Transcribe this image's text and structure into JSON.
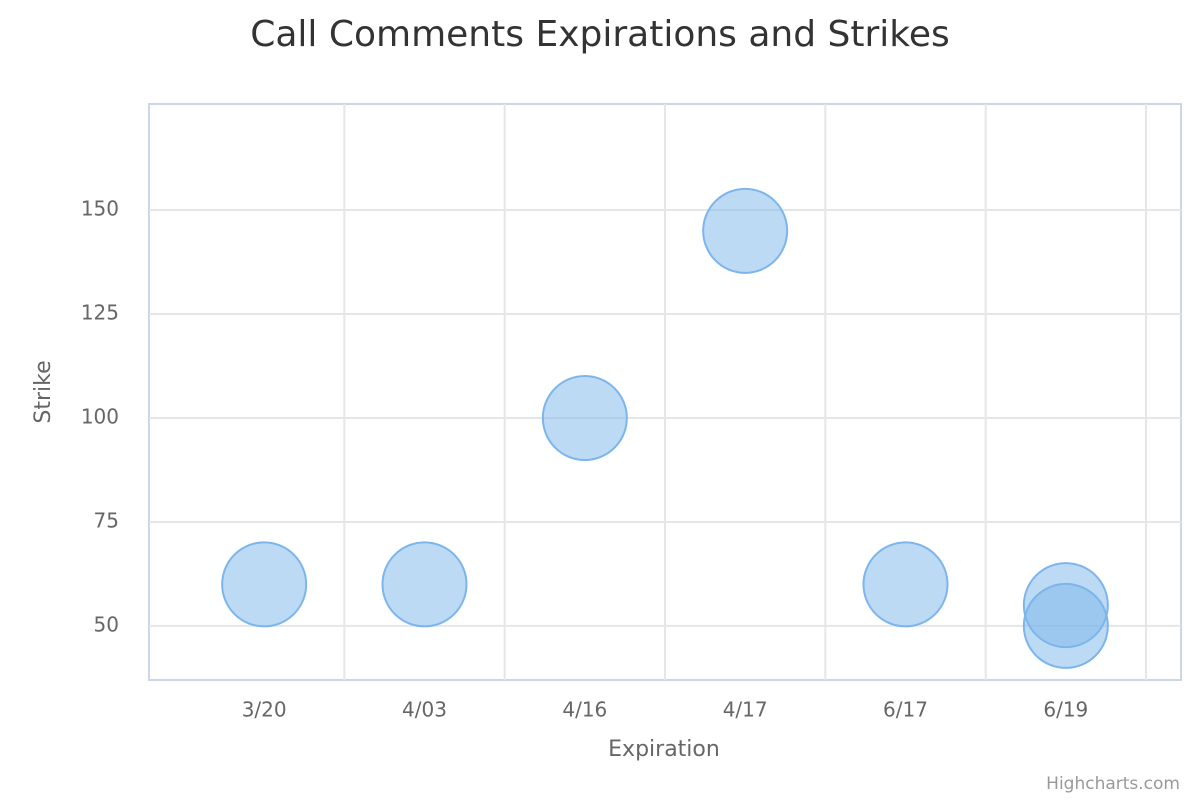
{
  "chart_data": {
    "type": "bubble",
    "title": "Call Comments Expirations and Strikes",
    "x_label": "Expiration",
    "y_label": "Strike",
    "credits": "Highcharts.com",
    "categories": [
      "3/20",
      "4/03",
      "4/16",
      "4/17",
      "6/17",
      "6/19"
    ],
    "series": [
      {
        "color": "#7cb5ec",
        "x": [
          "3/20",
          "4/03",
          "4/16",
          "4/17",
          "6/17",
          "6/19",
          "6/19"
        ],
        "values": [
          60,
          60,
          100,
          145,
          60,
          55,
          50
        ]
      }
    ],
    "ylim": [
      37,
      175.5
    ],
    "yticks": [
      50,
      75,
      100,
      125,
      150
    ],
    "grid": true
  }
}
